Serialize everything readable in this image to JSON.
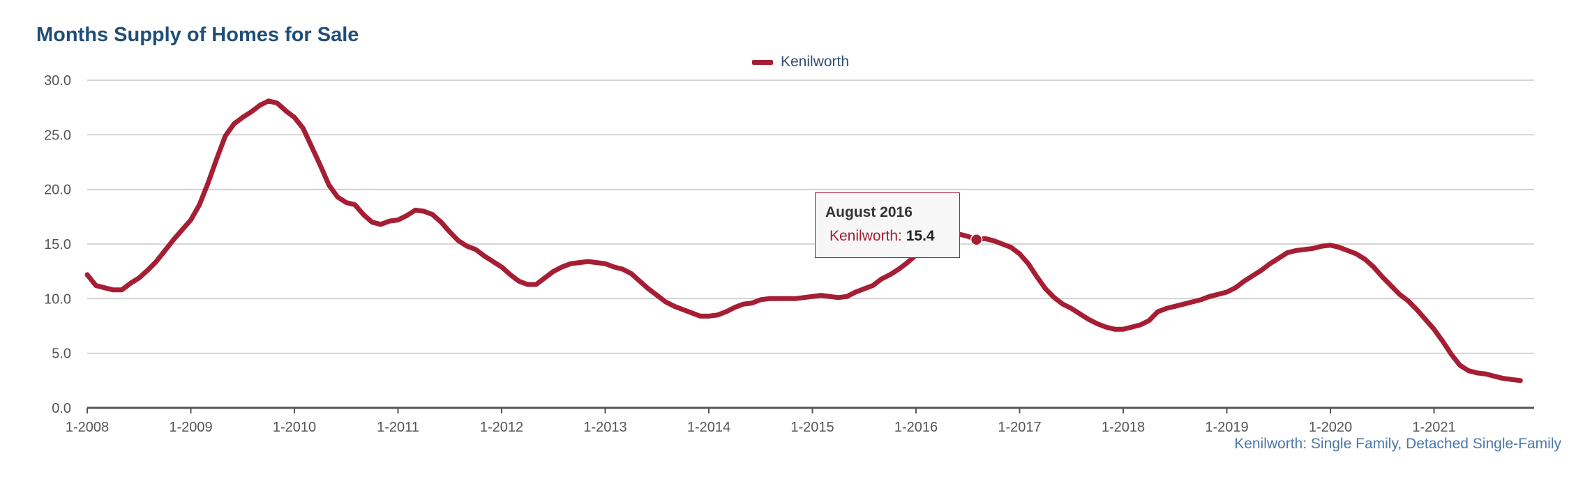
{
  "title": "Months Supply of Homes for Sale",
  "subtitle": "Kenilworth: Single Family, Detached Single-Family",
  "colors": {
    "series": "#a61e34",
    "title": "#1f4e79",
    "subtitle": "#4a78a8",
    "grid": "#c8c8c8",
    "axis": "#555555"
  },
  "tooltip": {
    "title": "August 2016",
    "series_label": "Kenilworth:",
    "value": "15.4"
  },
  "chart_data": {
    "type": "line",
    "title": "Months Supply of Homes for Sale",
    "xlabel": "",
    "ylabel": "",
    "ylim": [
      0,
      30
    ],
    "yticks": [
      "0.0",
      "5.0",
      "10.0",
      "15.0",
      "20.0",
      "25.0",
      "30.0"
    ],
    "xticks": [
      "1-2008",
      "1-2009",
      "1-2010",
      "1-2011",
      "1-2012",
      "1-2013",
      "1-2014",
      "1-2015",
      "1-2016",
      "1-2017",
      "1-2018",
      "1-2019",
      "1-2020",
      "1-2021"
    ],
    "grid": true,
    "legend": "top-center",
    "highlight": {
      "date": "2016-08",
      "value": 15.4
    },
    "series": [
      {
        "name": "Kenilworth",
        "points": [
          [
            "2008-01",
            12.2
          ],
          [
            "2008-02",
            11.2
          ],
          [
            "2008-03",
            11.0
          ],
          [
            "2008-04",
            10.8
          ],
          [
            "2008-05",
            10.8
          ],
          [
            "2008-06",
            11.4
          ],
          [
            "2008-07",
            11.9
          ],
          [
            "2008-08",
            12.6
          ],
          [
            "2008-09",
            13.4
          ],
          [
            "2008-10",
            14.4
          ],
          [
            "2008-11",
            15.4
          ],
          [
            "2008-12",
            16.3
          ],
          [
            "2009-01",
            17.2
          ],
          [
            "2009-02",
            18.6
          ],
          [
            "2009-03",
            20.6
          ],
          [
            "2009-04",
            22.8
          ],
          [
            "2009-05",
            24.9
          ],
          [
            "2009-06",
            26.0
          ],
          [
            "2009-07",
            26.6
          ],
          [
            "2009-08",
            27.1
          ],
          [
            "2009-09",
            27.7
          ],
          [
            "2009-10",
            28.1
          ],
          [
            "2009-11",
            27.9
          ],
          [
            "2009-12",
            27.2
          ],
          [
            "2010-01",
            26.6
          ],
          [
            "2010-02",
            25.6
          ],
          [
            "2010-03",
            23.9
          ],
          [
            "2010-04",
            22.2
          ],
          [
            "2010-05",
            20.4
          ],
          [
            "2010-06",
            19.3
          ],
          [
            "2010-07",
            18.8
          ],
          [
            "2010-08",
            18.6
          ],
          [
            "2010-09",
            17.7
          ],
          [
            "2010-10",
            17.0
          ],
          [
            "2010-11",
            16.8
          ],
          [
            "2010-12",
            17.1
          ],
          [
            "2011-01",
            17.2
          ],
          [
            "2011-02",
            17.6
          ],
          [
            "2011-03",
            18.1
          ],
          [
            "2011-04",
            18.0
          ],
          [
            "2011-05",
            17.7
          ],
          [
            "2011-06",
            17.0
          ],
          [
            "2011-07",
            16.1
          ],
          [
            "2011-08",
            15.3
          ],
          [
            "2011-09",
            14.8
          ],
          [
            "2011-10",
            14.5
          ],
          [
            "2011-11",
            13.9
          ],
          [
            "2011-12",
            13.4
          ],
          [
            "2012-01",
            12.9
          ],
          [
            "2012-02",
            12.2
          ],
          [
            "2012-03",
            11.6
          ],
          [
            "2012-04",
            11.3
          ],
          [
            "2012-05",
            11.3
          ],
          [
            "2012-06",
            11.9
          ],
          [
            "2012-07",
            12.5
          ],
          [
            "2012-08",
            12.9
          ],
          [
            "2012-09",
            13.2
          ],
          [
            "2012-10",
            13.3
          ],
          [
            "2012-11",
            13.4
          ],
          [
            "2012-12",
            13.3
          ],
          [
            "2013-01",
            13.2
          ],
          [
            "2013-02",
            12.9
          ],
          [
            "2013-03",
            12.7
          ],
          [
            "2013-04",
            12.3
          ],
          [
            "2013-05",
            11.6
          ],
          [
            "2013-06",
            10.9
          ],
          [
            "2013-07",
            10.3
          ],
          [
            "2013-08",
            9.7
          ],
          [
            "2013-09",
            9.3
          ],
          [
            "2013-10",
            9.0
          ],
          [
            "2013-11",
            8.7
          ],
          [
            "2013-12",
            8.4
          ],
          [
            "2014-01",
            8.4
          ],
          [
            "2014-02",
            8.5
          ],
          [
            "2014-03",
            8.8
          ],
          [
            "2014-04",
            9.2
          ],
          [
            "2014-05",
            9.5
          ],
          [
            "2014-06",
            9.6
          ],
          [
            "2014-07",
            9.9
          ],
          [
            "2014-08",
            10.0
          ],
          [
            "2014-09",
            10.0
          ],
          [
            "2014-10",
            10.0
          ],
          [
            "2014-11",
            10.0
          ],
          [
            "2014-12",
            10.1
          ],
          [
            "2015-01",
            10.2
          ],
          [
            "2015-02",
            10.3
          ],
          [
            "2015-03",
            10.2
          ],
          [
            "2015-04",
            10.1
          ],
          [
            "2015-05",
            10.2
          ],
          [
            "2015-06",
            10.6
          ],
          [
            "2015-07",
            10.9
          ],
          [
            "2015-08",
            11.2
          ],
          [
            "2015-09",
            11.8
          ],
          [
            "2015-10",
            12.2
          ],
          [
            "2015-11",
            12.7
          ],
          [
            "2015-12",
            13.3
          ],
          [
            "2016-01",
            14.0
          ],
          [
            "2016-02",
            14.8
          ],
          [
            "2016-03",
            15.5
          ],
          [
            "2016-04",
            15.9
          ],
          [
            "2016-05",
            16.1
          ],
          [
            "2016-06",
            15.9
          ],
          [
            "2016-07",
            15.7
          ],
          [
            "2016-08",
            15.4
          ],
          [
            "2016-09",
            15.5
          ],
          [
            "2016-10",
            15.3
          ],
          [
            "2016-11",
            15.0
          ],
          [
            "2016-12",
            14.7
          ],
          [
            "2017-01",
            14.1
          ],
          [
            "2017-02",
            13.2
          ],
          [
            "2017-03",
            12.0
          ],
          [
            "2017-04",
            10.9
          ],
          [
            "2017-05",
            10.1
          ],
          [
            "2017-06",
            9.5
          ],
          [
            "2017-07",
            9.1
          ],
          [
            "2017-08",
            8.6
          ],
          [
            "2017-09",
            8.1
          ],
          [
            "2017-10",
            7.7
          ],
          [
            "2017-11",
            7.4
          ],
          [
            "2017-12",
            7.2
          ],
          [
            "2018-01",
            7.2
          ],
          [
            "2018-02",
            7.4
          ],
          [
            "2018-03",
            7.6
          ],
          [
            "2018-04",
            8.0
          ],
          [
            "2018-05",
            8.8
          ],
          [
            "2018-06",
            9.1
          ],
          [
            "2018-07",
            9.3
          ],
          [
            "2018-08",
            9.5
          ],
          [
            "2018-09",
            9.7
          ],
          [
            "2018-10",
            9.9
          ],
          [
            "2018-11",
            10.2
          ],
          [
            "2018-12",
            10.4
          ],
          [
            "2019-01",
            10.6
          ],
          [
            "2019-02",
            11.0
          ],
          [
            "2019-03",
            11.6
          ],
          [
            "2019-04",
            12.1
          ],
          [
            "2019-05",
            12.6
          ],
          [
            "2019-06",
            13.2
          ],
          [
            "2019-07",
            13.7
          ],
          [
            "2019-08",
            14.2
          ],
          [
            "2019-09",
            14.4
          ],
          [
            "2019-10",
            14.5
          ],
          [
            "2019-11",
            14.6
          ],
          [
            "2019-12",
            14.8
          ],
          [
            "2020-01",
            14.9
          ],
          [
            "2020-02",
            14.7
          ],
          [
            "2020-03",
            14.4
          ],
          [
            "2020-04",
            14.1
          ],
          [
            "2020-05",
            13.6
          ],
          [
            "2020-06",
            12.9
          ],
          [
            "2020-07",
            12.0
          ],
          [
            "2020-08",
            11.2
          ],
          [
            "2020-09",
            10.4
          ],
          [
            "2020-10",
            9.8
          ],
          [
            "2020-11",
            9.0
          ],
          [
            "2020-12",
            8.1
          ],
          [
            "2021-01",
            7.2
          ],
          [
            "2021-02",
            6.1
          ],
          [
            "2021-03",
            4.9
          ],
          [
            "2021-04",
            3.9
          ],
          [
            "2021-05",
            3.4
          ],
          [
            "2021-06",
            3.2
          ],
          [
            "2021-07",
            3.1
          ],
          [
            "2021-08",
            2.9
          ],
          [
            "2021-09",
            2.7
          ],
          [
            "2021-10",
            2.6
          ],
          [
            "2021-11",
            2.5
          ]
        ]
      }
    ]
  }
}
